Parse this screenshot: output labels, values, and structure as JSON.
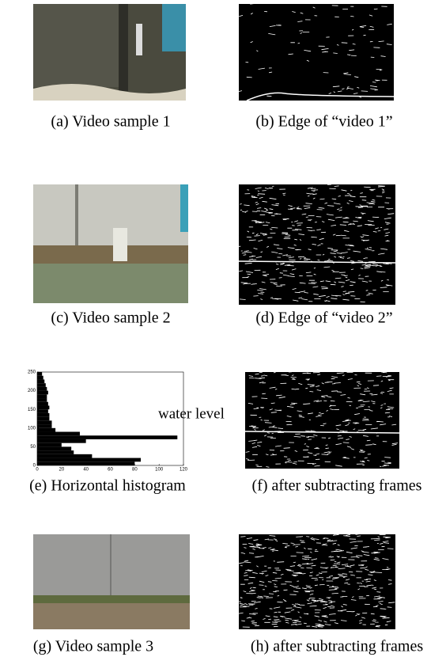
{
  "panels": [
    {
      "caption": "(a) Video sample 1"
    },
    {
      "caption": "(b) Edge of “video 1”"
    },
    {
      "caption": "(c) Video sample 2"
    },
    {
      "caption": "(d) Edge of “video 2”"
    },
    {
      "caption": "(e) Horizontal histogram"
    },
    {
      "caption": "(f) after subtracting frames"
    },
    {
      "caption": "(g) Video sample 3"
    },
    {
      "caption": "(h) after subtracting frames"
    }
  ],
  "histogram": {
    "annotation": "water level",
    "xlim": [
      0,
      120
    ],
    "ylim": [
      0,
      250
    ],
    "xticks": [
      0,
      20,
      40,
      60,
      80,
      100,
      120
    ],
    "yticks": [
      0,
      50,
      100,
      150,
      200,
      250
    ],
    "bins": [
      0,
      10,
      20,
      30,
      40,
      50,
      60,
      70,
      80,
      90,
      100,
      110,
      120,
      130,
      140,
      150,
      160,
      170,
      180,
      190,
      200,
      210,
      220,
      230,
      240,
      250
    ],
    "counts": [
      80,
      85,
      45,
      30,
      28,
      20,
      40,
      115,
      35,
      15,
      12,
      12,
      10,
      10,
      9,
      10,
      9,
      8,
      8,
      9,
      8,
      7,
      6,
      5,
      4
    ]
  }
}
